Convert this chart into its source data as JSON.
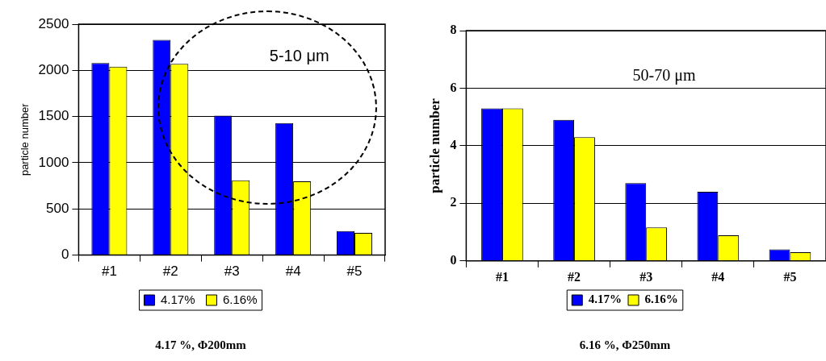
{
  "chart_data": [
    {
      "type": "bar",
      "title": "4.17 %, Φ200mm",
      "ylabel": "particle number",
      "categories": [
        "#1",
        "#2",
        "#3",
        "#4",
        "#5"
      ],
      "series": [
        {
          "name": "4.17%",
          "color": "#0000ff",
          "values": [
            2080,
            2330,
            1510,
            1430,
            260
          ]
        },
        {
          "name": "6.16%",
          "color": "#ffff00",
          "values": [
            2040,
            2070,
            810,
            800,
            240
          ]
        }
      ],
      "ylim": [
        0,
        2500
      ],
      "yticks": [
        0,
        500,
        1000,
        1500,
        2000,
        2500
      ],
      "grid": "y",
      "legend": "bottom",
      "annotations": [
        "5-10 μm"
      ]
    },
    {
      "type": "bar",
      "title": "6.16 %, Φ250mm",
      "ylabel": "particle number",
      "categories": [
        "#1",
        "#2",
        "#3",
        "#4",
        "#5"
      ],
      "series": [
        {
          "name": "4.17%",
          "color": "#0000ff",
          "values": [
            5.3,
            4.9,
            2.7,
            2.4,
            0.4
          ]
        },
        {
          "name": "6.16%",
          "color": "#ffff00",
          "values": [
            5.3,
            4.3,
            1.16,
            0.89,
            0.3
          ]
        }
      ],
      "ylim": [
        0,
        8
      ],
      "yticks": [
        0,
        2,
        4,
        6,
        8
      ],
      "grid": "y",
      "legend": "bottom",
      "annotations": [
        "50-70 μm"
      ]
    }
  ]
}
